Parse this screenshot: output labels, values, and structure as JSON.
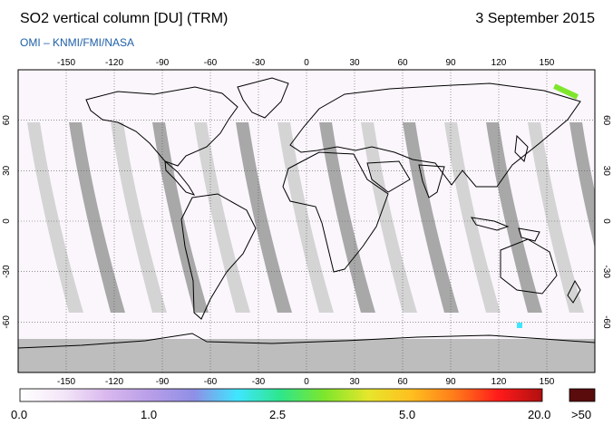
{
  "header": {
    "title": "SO2 vertical column [DU] (TRM)",
    "date": "3 September 2015",
    "credit": "OMI  –  KNMI/FMI/NASA"
  },
  "map": {
    "projection": "equirectangular",
    "lon_range": [
      -180,
      180
    ],
    "lat_range": [
      -90,
      90
    ],
    "lon_ticks": [
      "-150",
      "-120",
      "-90",
      "-60",
      "-30",
      "0",
      "30",
      "60",
      "90",
      "120",
      "150"
    ],
    "lat_ticks": [
      "60",
      "30",
      "0",
      "-30",
      "-60"
    ],
    "gridlines": "dotted",
    "colors": {
      "land_outline": "#000000",
      "orbit_gap": "#a8a8a8",
      "orbit_light": "#d4d4d4",
      "polar_night": "#bdbdbd",
      "background": "#fbf6fc"
    }
  },
  "colorbar": {
    "labels": [
      "0.0",
      "1.0",
      "2.5",
      "5.0",
      "20.0"
    ],
    "overflow_label": ">50",
    "overflow_color": "#5a0c0c",
    "gradient": [
      "#ffffff",
      "#f3e6f8",
      "#d9b8ee",
      "#b89ee8",
      "#8f8fe6",
      "#3fe6ff",
      "#2ee68a",
      "#7ee62c",
      "#e6e62c",
      "#ffbf1f",
      "#ff7a1a",
      "#ff1a1a",
      "#b01010"
    ]
  }
}
